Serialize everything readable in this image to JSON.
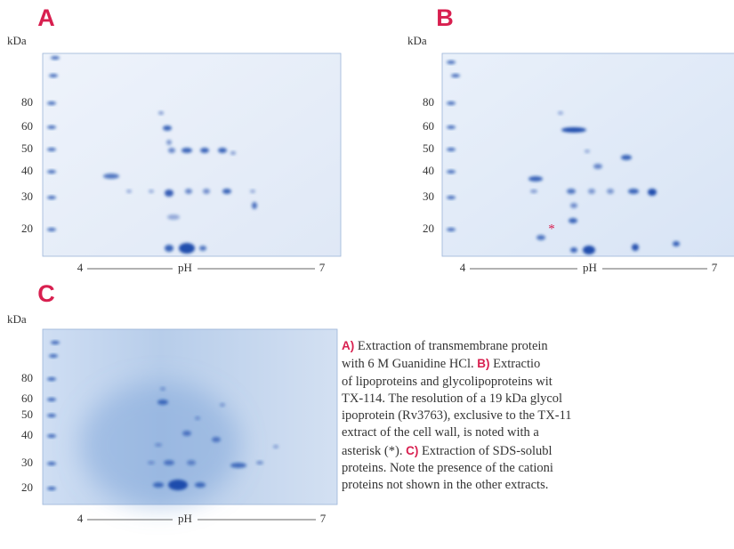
{
  "panels": [
    {
      "letter": "A",
      "unit": "kDa",
      "ticks": [
        "80",
        "60",
        "50",
        "40",
        "30",
        "20"
      ],
      "axis": {
        "low": "4",
        "label": "pH",
        "high": "7"
      }
    },
    {
      "letter": "B",
      "unit": "kDa",
      "ticks": [
        "80",
        "60",
        "50",
        "40",
        "30",
        "20"
      ],
      "axis": {
        "low": "4",
        "label": "pH",
        "high": "7"
      },
      "annotation": "*"
    },
    {
      "letter": "C",
      "unit": "kDa",
      "ticks": [
        "80",
        "60",
        "50",
        "40",
        "30",
        "20"
      ],
      "axis": {
        "low": "4",
        "label": "pH",
        "high": "7"
      }
    }
  ],
  "caption": {
    "lines": [
      [
        {
          "ref": "A)"
        },
        " Extraction of transmembrane protein"
      ],
      [
        "with 6 M Guanidine HCl. ",
        {
          "ref": "B)"
        },
        " Extractio"
      ],
      [
        "of lipoproteins and glycolipoproteins wit"
      ],
      [
        "TX-114. The resolution of a 19 kDa glycol"
      ],
      [
        "ipoprotein (Rv3763), exclusive to the TX-11"
      ],
      [
        "extract of the cell wall, is noted with a"
      ],
      [
        "asterisk (*). ",
        {
          "ref": "C)"
        },
        " Extraction of SDS-solubl"
      ],
      [
        "proteins. Note the presence of the cationi"
      ],
      [
        "proteins not shown in the other extracts."
      ]
    ]
  }
}
